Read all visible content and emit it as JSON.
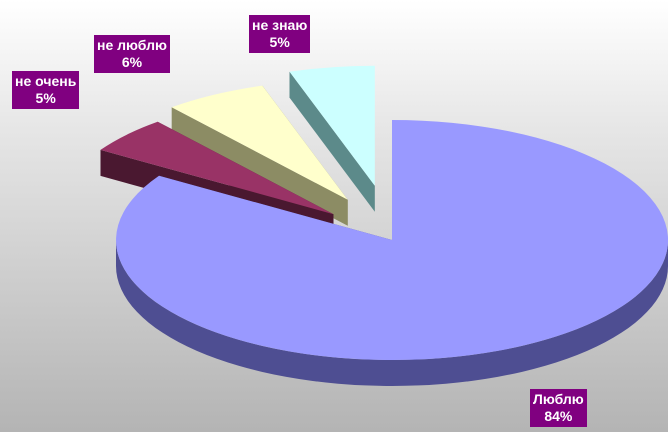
{
  "chart_data": {
    "type": "pie",
    "style": "3d-exploded",
    "legend": "none",
    "categories": [
      "Люблю",
      "не очень",
      "не люблю",
      "не знаю"
    ],
    "values": [
      84,
      5,
      6,
      5
    ],
    "labels": [
      {
        "name": "Люблю",
        "value": "84%"
      },
      {
        "name": "не очень",
        "value": "5%"
      },
      {
        "name": "не люблю",
        "value": "6%"
      },
      {
        "name": "не знаю",
        "value": "5%"
      }
    ],
    "colors": {
      "top": [
        "#9999ff",
        "#993366",
        "#ffffcc",
        "#ccffff"
      ],
      "side": [
        "#4e4e92",
        "#4a1830",
        "#8c8c64",
        "#5c8a8a"
      ],
      "label_background": "#800080",
      "label_text": "#ffffff"
    }
  }
}
